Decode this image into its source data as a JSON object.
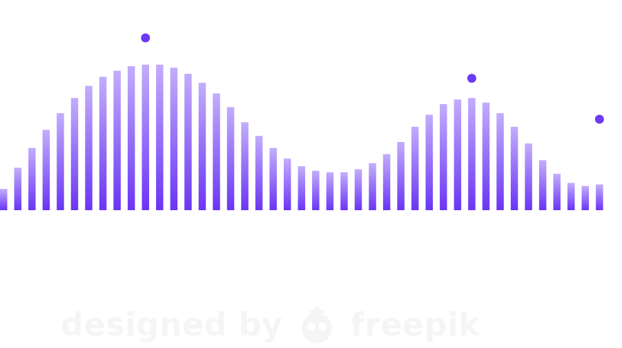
{
  "chart_data": {
    "type": "bar",
    "bar_count": 43,
    "values": [
      0.14,
      0.28,
      0.41,
      0.53,
      0.64,
      0.74,
      0.82,
      0.88,
      0.92,
      0.95,
      0.96,
      0.96,
      0.94,
      0.9,
      0.84,
      0.77,
      0.68,
      0.58,
      0.49,
      0.41,
      0.34,
      0.29,
      0.26,
      0.25,
      0.25,
      0.27,
      0.31,
      0.37,
      0.45,
      0.55,
      0.63,
      0.7,
      0.73,
      0.74,
      0.71,
      0.64,
      0.55,
      0.44,
      0.33,
      0.24,
      0.18,
      0.16,
      0.17
    ],
    "markers": [
      {
        "after_bar": 10,
        "value": 1.0
      },
      {
        "after_bar": 33,
        "value": 0.87
      },
      {
        "after_bar": 42,
        "value": 0.6
      }
    ],
    "gradient_top": "#c3adfc",
    "gradient_bottom": "#6a35f4",
    "marker_color": "#6b3bf3",
    "title": "",
    "xlabel": "",
    "ylabel": "",
    "grid": false,
    "legend": "none"
  },
  "watermark": {
    "text": "designed by",
    "brand": "freepik"
  }
}
